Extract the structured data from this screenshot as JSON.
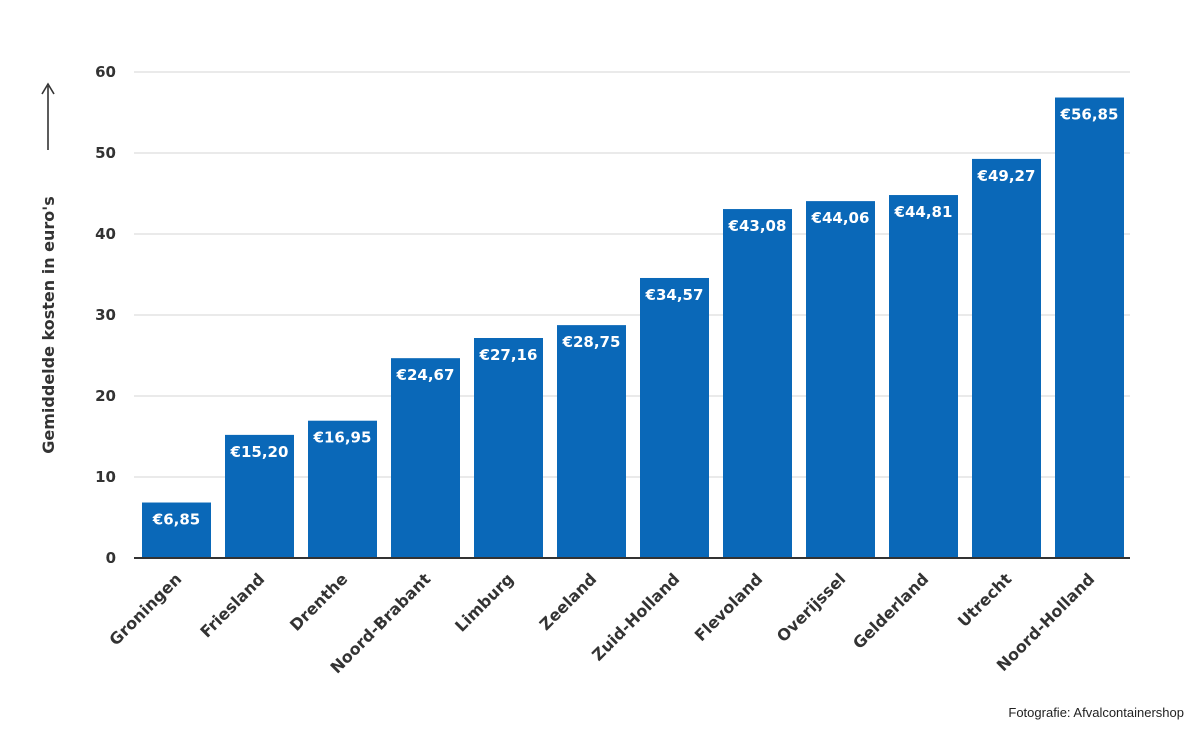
{
  "chart_data": {
    "type": "bar",
    "categories": [
      "Groningen",
      "Friesland",
      "Drenthe",
      "Noord-Brabant",
      "Limburg",
      "Zeeland",
      "Zuid-Holland",
      "Flevoland",
      "Overijssel",
      "Gelderland",
      "Utrecht",
      "Noord-Holland"
    ],
    "values": [
      6.85,
      15.2,
      16.95,
      24.67,
      27.16,
      28.75,
      34.57,
      43.08,
      44.06,
      44.81,
      49.27,
      56.85
    ],
    "data_labels": [
      "€6,85",
      "€15,20",
      "€16,95",
      "€24,67",
      "€27,16",
      "€28,75",
      "€34,57",
      "€43,08",
      "€44,06",
      "€44,81",
      "€49,27",
      "€56,85"
    ],
    "title": "",
    "xlabel": "",
    "ylabel": "Gemiddelde kosten in euro's",
    "ylim": [
      0,
      60
    ],
    "yticks": [
      0,
      10,
      20,
      30,
      40,
      50,
      60
    ],
    "grid": true,
    "bar_color": "#0a68b8"
  },
  "credit": "Fotografie: Afvalcontainershop"
}
